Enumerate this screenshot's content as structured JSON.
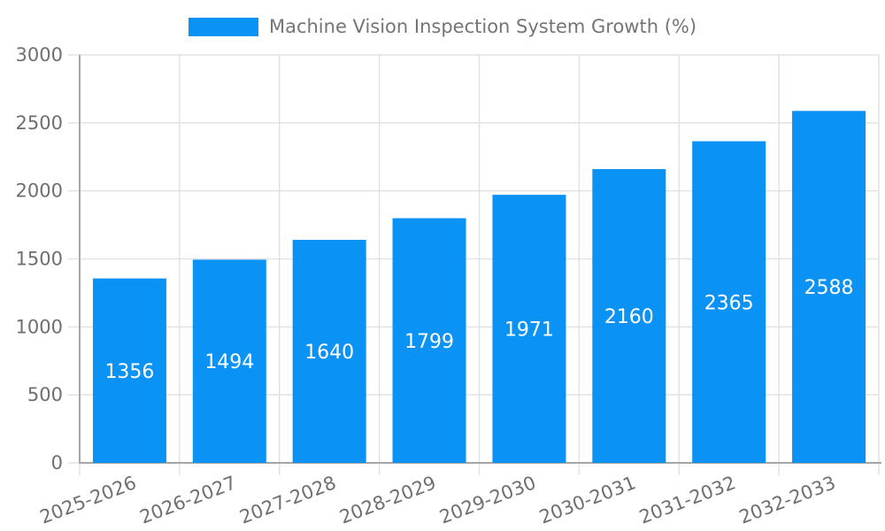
{
  "chart_data": {
    "type": "bar",
    "title": "Machine Vision Inspection System Growth (%)",
    "legend_label": "Machine Vision Inspection System Growth (%)",
    "legend_position": "top-center",
    "categories": [
      "2025-2026",
      "2026-2027",
      "2027-2028",
      "2028-2029",
      "2029-2030",
      "2030-2031",
      "2031-2032",
      "2032-2033"
    ],
    "values": [
      1356,
      1494,
      1640,
      1799,
      1971,
      2160,
      2365,
      2588
    ],
    "value_labels": [
      "1356",
      "1494",
      "1640",
      "1799",
      "1971",
      "2160",
      "2365",
      "2588"
    ],
    "ytick_labels": [
      "0",
      "500",
      "1000",
      "1500",
      "2000",
      "2500",
      "3000"
    ],
    "ylim": [
      0,
      3000
    ],
    "ytick_step": 500,
    "grid": "on",
    "x_label_rotation_deg": -21,
    "colors": {
      "bar": "#0b92f5",
      "value_label": "#ffffff",
      "grid_line": "#e2e2e2",
      "axis_line": "#a6a6a6",
      "tick_label": "#6f6f6f",
      "legend_text": "#757575",
      "background": "#ffffff"
    }
  }
}
